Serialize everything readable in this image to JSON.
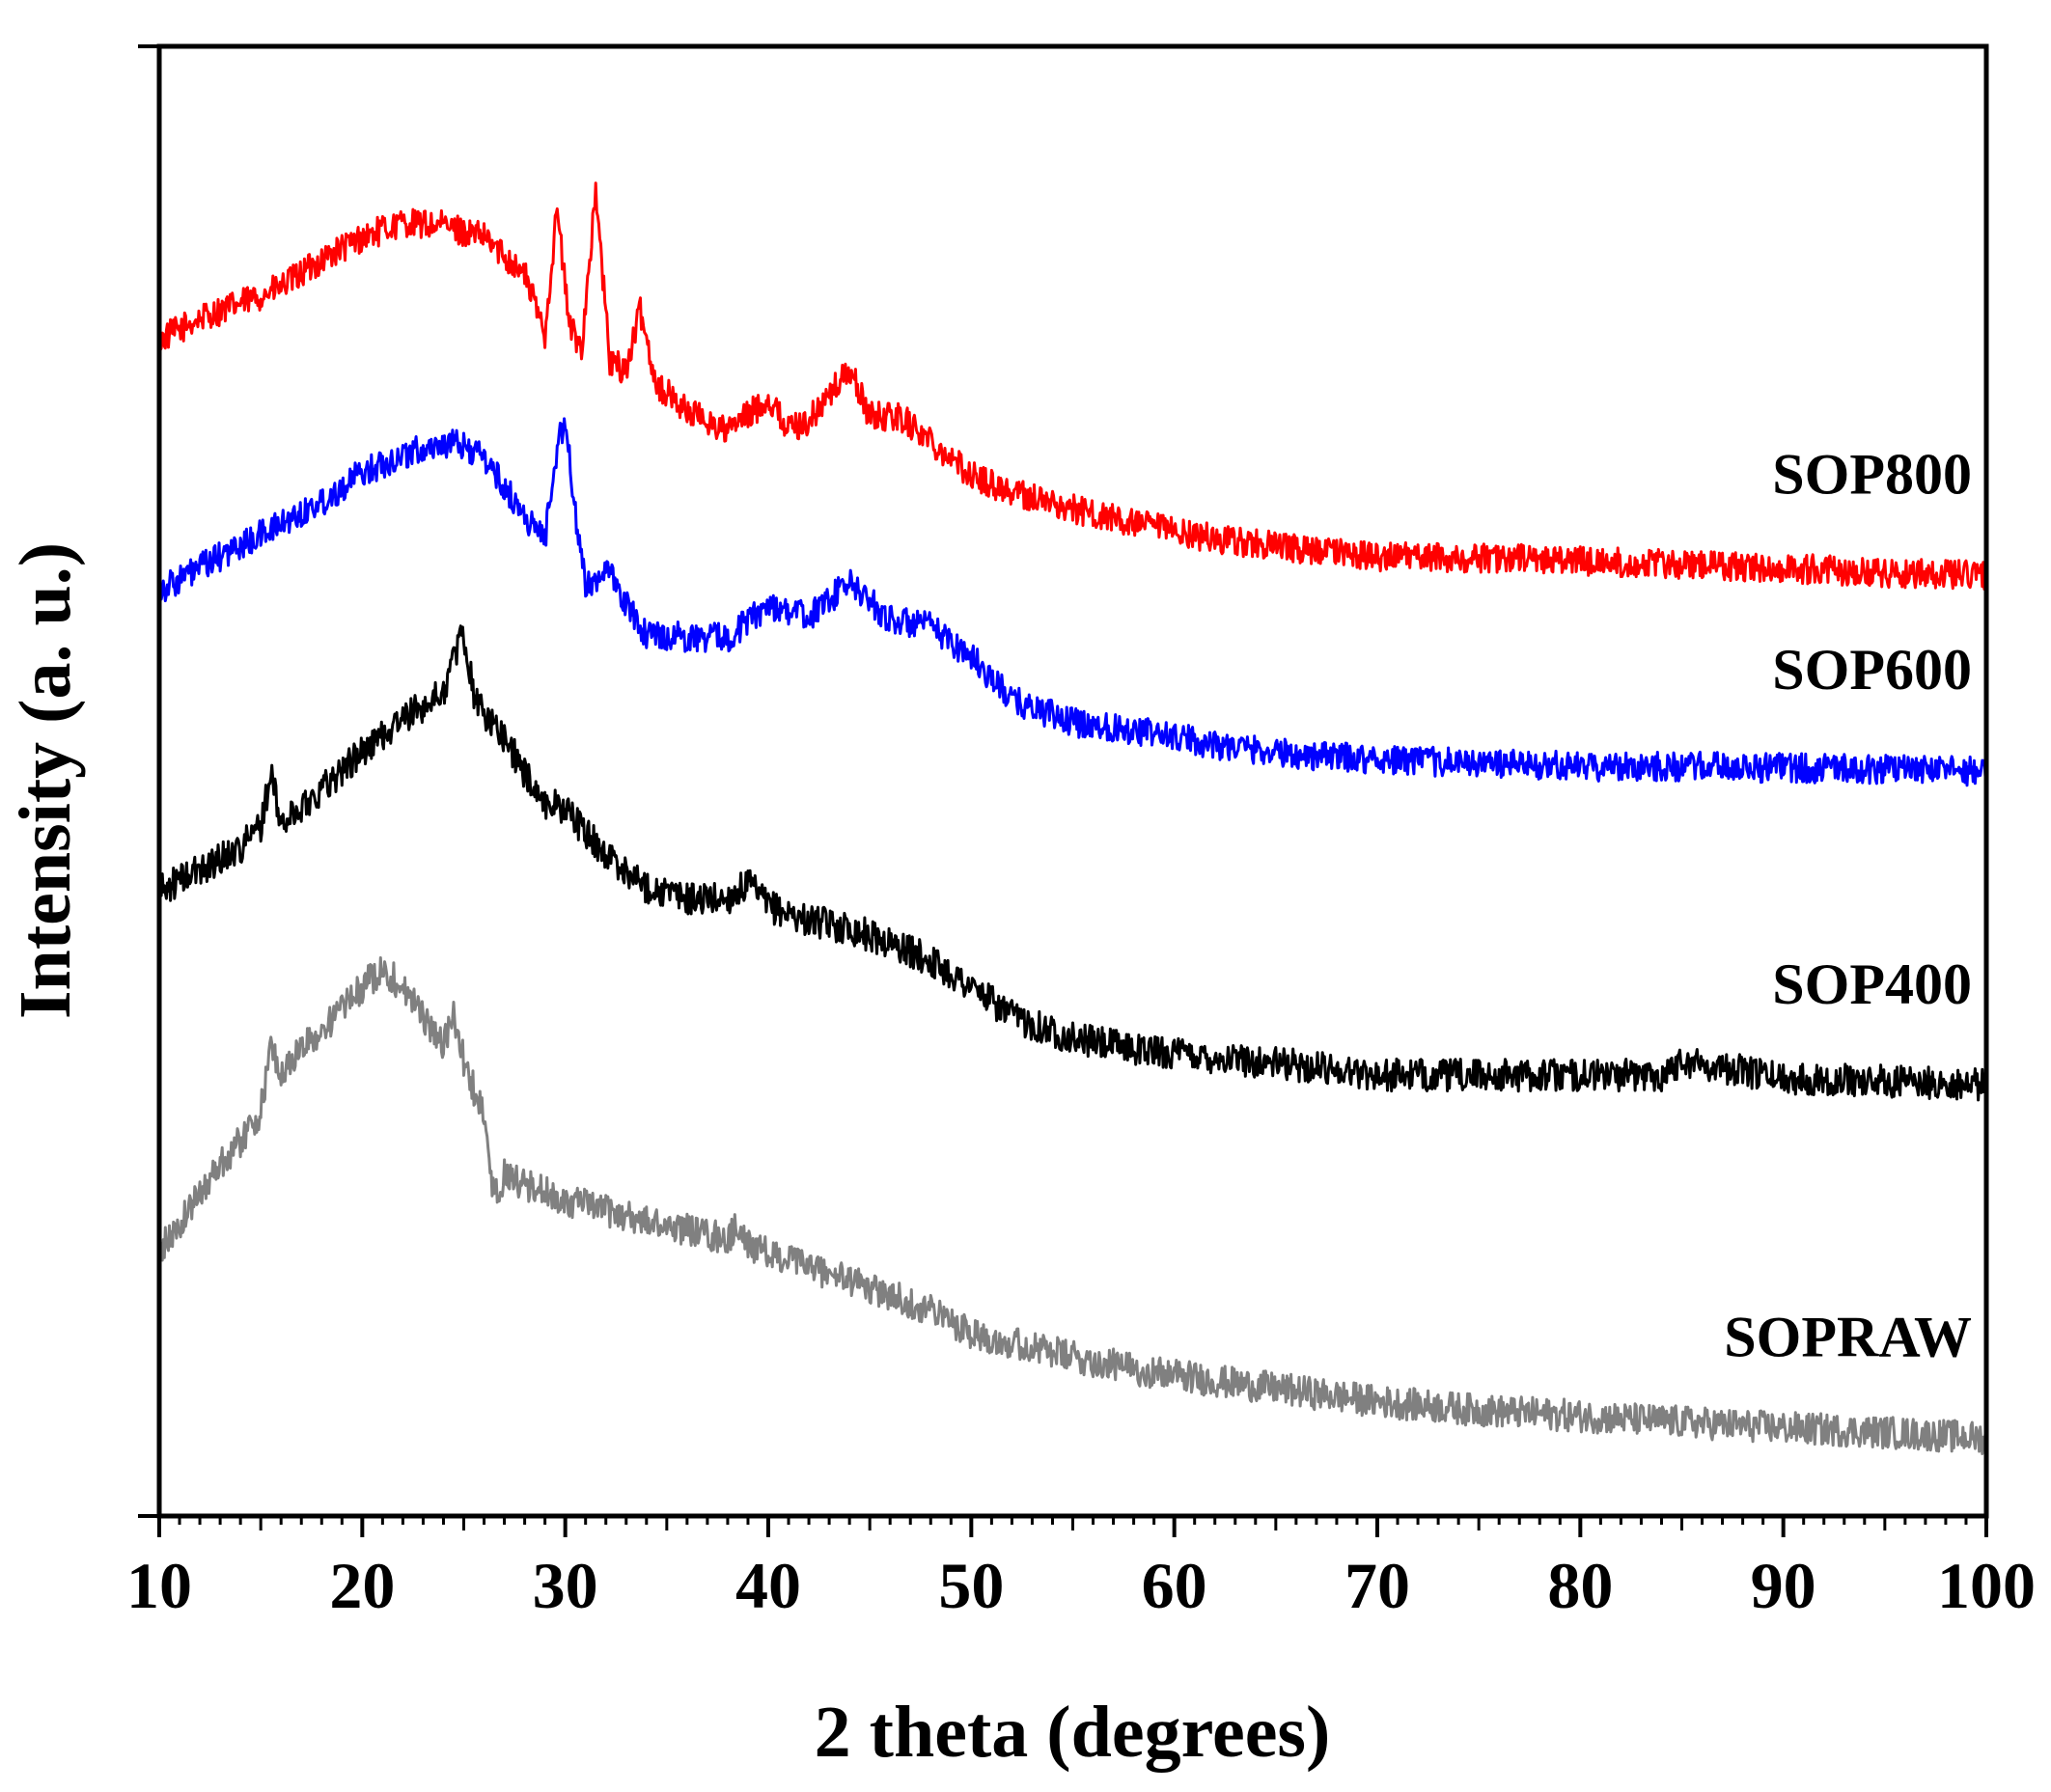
{
  "chart_data": {
    "type": "line",
    "title": "",
    "xlabel": "2 theta (degrees)",
    "ylabel": "Intensity (a. u.)",
    "xlim": [
      10,
      100
    ],
    "xticks": [
      10,
      20,
      30,
      40,
      50,
      60,
      70,
      80,
      90,
      100
    ],
    "xtick_labels": [
      "10",
      "20",
      "30",
      "40",
      "50",
      "60",
      "70",
      "80",
      "90",
      "100"
    ],
    "ylim": [
      0,
      1000
    ],
    "yticks_shown": false,
    "grid": false,
    "legend": "inline labels at right",
    "series": [
      {
        "name": "SOP800",
        "label": "SOP800",
        "color": "#ff0000",
        "x": [
          10,
          12,
          14,
          16,
          18,
          20,
          22,
          24,
          26,
          27,
          28,
          29,
          29.6,
          30.2,
          30.8,
          31.5,
          32.2,
          33,
          33.7,
          34.5,
          36,
          38,
          40,
          41,
          42,
          44,
          45,
          46.5,
          48,
          50,
          52,
          55,
          58,
          62,
          66,
          70,
          75,
          80,
          85,
          90,
          95,
          100
        ],
        "values": [
          800,
          815,
          825,
          836,
          855,
          870,
          880,
          878,
          870,
          858,
          845,
          805,
          890,
          810,
          795,
          900,
          785,
          780,
          820,
          770,
          752,
          738,
          760,
          740,
          745,
          780,
          748,
          748,
          732,
          708,
          697,
          685,
          675,
          665,
          658,
          653,
          652,
          650,
          647,
          645,
          642,
          640
        ],
        "noise": 10
      },
      {
        "name": "SOP600",
        "label": "SOP600",
        "color": "#0000ff",
        "x": [
          10,
          12,
          14,
          16,
          18,
          20,
          22,
          24,
          25,
          26,
          27,
          28,
          29,
          29.5,
          30,
          30.5,
          31,
          32,
          33,
          34,
          36,
          38,
          40,
          42,
          44,
          46,
          48,
          50,
          52,
          55,
          58,
          62,
          66,
          70,
          75,
          80,
          85,
          90,
          95,
          100
        ],
        "values": [
          630,
          645,
          660,
          675,
          690,
          710,
          722,
          730,
          728,
          720,
          700,
          680,
          665,
          720,
          748,
          680,
          632,
          645,
          620,
          600,
          598,
          598,
          620,
          612,
          635,
          610,
          605,
          585,
          555,
          540,
          535,
          525,
          518,
          515,
          512,
          510,
          510,
          509,
          508,
          507
        ],
        "noise": 10
      },
      {
        "name": "SOP400",
        "label": "SOP400",
        "color": "#000000",
        "x": [
          10,
          12,
          14,
          15,
          15.5,
          16,
          17,
          18,
          20,
          22,
          24,
          24.5,
          25,
          25.5,
          26,
          27,
          28,
          29,
          30,
          31,
          32,
          34,
          36,
          38,
          39,
          40,
          42,
          44,
          46,
          48,
          50,
          52,
          55,
          58,
          60,
          62,
          65,
          68,
          70,
          75,
          80,
          84,
          85,
          90,
          95,
          100
        ],
        "values": [
          425,
          440,
          455,
          470,
          505,
          470,
          482,
          495,
          520,
          542,
          560,
          585,
          600,
          560,
          545,
          530,
          505,
          485,
          482,
          465,
          450,
          428,
          420,
          420,
          430,
          415,
          405,
          400,
          390,
          378,
          360,
          340,
          325,
          318,
          315,
          312,
          308,
          304,
          300,
          300,
          300,
          300,
          310,
          298,
          296,
          293
        ],
        "noise": 11
      },
      {
        "name": "SOPRAW",
        "label": "SOPRAW",
        "color": "#808080",
        "x": [
          10,
          11,
          12,
          13,
          14,
          15,
          15.5,
          16,
          17,
          18,
          19,
          20,
          21,
          22,
          23,
          24,
          24.5,
          25,
          26,
          26.5,
          27,
          28,
          30,
          32,
          34,
          36,
          38,
          38.5,
          39,
          40,
          42,
          44,
          46,
          48,
          50,
          52,
          55,
          58,
          62,
          66,
          70,
          75,
          80,
          85,
          90,
          95,
          100
        ],
        "values": [
          180,
          198,
          220,
          240,
          255,
          275,
          320,
          300,
          318,
          330,
          345,
          360,
          372,
          360,
          340,
          320,
          340,
          310,
          270,
          215,
          232,
          225,
          215,
          208,
          200,
          195,
          188,
          198,
          185,
          178,
          170,
          160,
          150,
          140,
          125,
          118,
          108,
          100,
          92,
          85,
          78,
          72,
          68,
          64,
          60,
          57,
          53
        ],
        "noise": 11
      }
    ]
  }
}
